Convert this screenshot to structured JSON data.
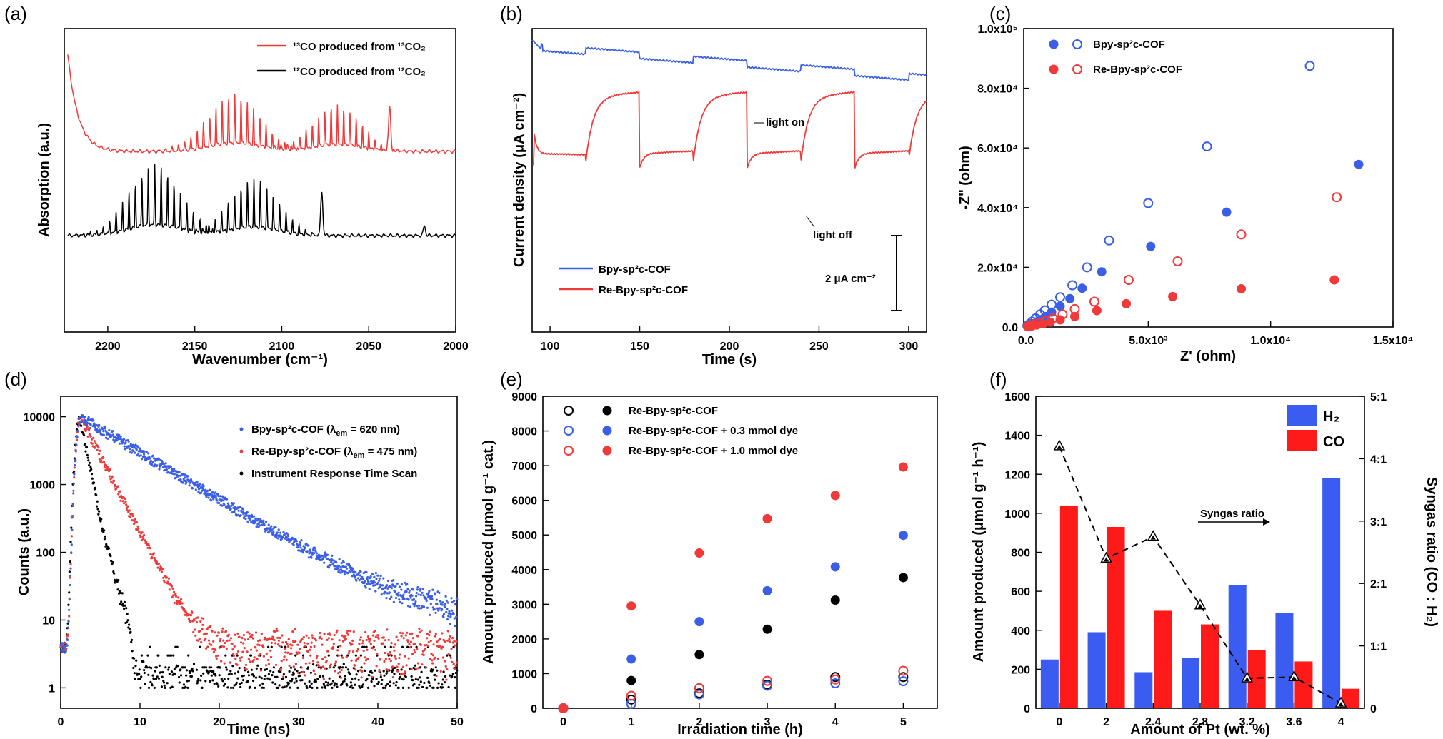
{
  "colors": {
    "blue": "#3a5fe6",
    "red": "#f03a3a",
    "black": "#000000",
    "bar_blue": "#3b5cf0",
    "bar_red": "#ff1a1a"
  },
  "chart_data": [
    {
      "panel": "(a)",
      "type": "line",
      "xlabel": "Wavenumber (cm⁻¹)",
      "ylabel": "Absorption (a.u.)",
      "xlim": [
        2225,
        2000
      ],
      "xticks": [
        2200,
        2150,
        2100,
        2050,
        2000
      ],
      "series": [
        {
          "name": "¹³CO produced from ¹³CO₂",
          "color": "#f03a3a"
        },
        {
          "name": "¹²CO produced from ¹²CO₂",
          "color": "#000000"
        }
      ]
    },
    {
      "panel": "(b)",
      "type": "line",
      "xlabel": "Time (s)",
      "ylabel": "Current density (μA cm⁻²)",
      "xlim": [
        90,
        310
      ],
      "xticks": [
        100,
        150,
        200,
        250,
        300
      ],
      "annotations": {
        "light_on": "light on",
        "light_off": "light off",
        "scale": "2 μA cm⁻²"
      },
      "series": [
        {
          "name": "Bpy-sp²c-COF",
          "color": "#3a5fe6"
        },
        {
          "name": "Re-Bpy-sp²c-COF",
          "color": "#f03a3a"
        }
      ]
    },
    {
      "panel": "(c)",
      "type": "scatter",
      "xlabel": "Z' (ohm)",
      "ylabel": "-Z'' (ohm)",
      "xlim": [
        0,
        15000
      ],
      "ylim": [
        0,
        100000
      ],
      "xticks": [
        "0.0",
        "5.0x10³",
        "1.0x10⁴",
        "1.5x10⁴"
      ],
      "yticks": [
        "0.0",
        "2.0x10⁴",
        "4.0x10⁴",
        "6.0x10⁴",
        "8.0x10⁴",
        "1.0x10⁵"
      ],
      "series": [
        {
          "name": "Bpy-sp²c-COF",
          "color": "#3a5fe6",
          "filled": true,
          "x": [
            80,
            180,
            300,
            450,
            620,
            800,
            1050,
            1400,
            1800,
            2300,
            3100,
            5100,
            8200,
            13600
          ],
          "y": [
            250,
            600,
            1100,
            1700,
            2500,
            3500,
            5000,
            7000,
            9500,
            13000,
            18500,
            27000,
            38500,
            54500
          ]
        },
        {
          "name": "Bpy-sp²c-COF",
          "color": "#3a5fe6",
          "filled": false,
          "x": [
            60,
            150,
            260,
            400,
            580,
            780,
            1050,
            1400,
            1900,
            2500,
            3400,
            5000,
            7400,
            11600
          ],
          "y": [
            400,
            1000,
            1800,
            2900,
            4200,
            5600,
            7500,
            10000,
            14000,
            20000,
            29000,
            41500,
            60500,
            87500
          ]
        },
        {
          "name": "Re-Bpy-sp²c-COF",
          "color": "#f03a3a",
          "filled": true,
          "x": [
            100,
            250,
            450,
            700,
            1000,
            1400,
            2000,
            2900,
            4100,
            6000,
            8800,
            12600
          ],
          "y": [
            150,
            350,
            700,
            1100,
            1600,
            2400,
            3500,
            5500,
            7800,
            10200,
            12800,
            15800
          ]
        },
        {
          "name": "Re-Bpy-sp²c-COF",
          "color": "#f03a3a",
          "filled": false,
          "x": [
            80,
            200,
            350,
            550,
            800,
            1100,
            1500,
            2000,
            2800,
            4200,
            6200,
            8800,
            12700
          ],
          "y": [
            200,
            500,
            900,
            1400,
            2000,
            2900,
            4200,
            6000,
            8500,
            15800,
            22000,
            31000,
            43500
          ]
        }
      ]
    },
    {
      "panel": "(d)",
      "type": "scatter",
      "yscale": "log",
      "xlabel": "Time (ns)",
      "ylabel": "Counts (a.u.)",
      "xlim": [
        0,
        50
      ],
      "ylim": [
        0.5,
        20000
      ],
      "xticks": [
        "0",
        "10",
        "20",
        "30",
        "40",
        "50"
      ],
      "yticks": [
        "1",
        "10",
        "100",
        "1000",
        "10000"
      ],
      "series": [
        {
          "name": "Bpy-sp²c-COF (λ",
          "name_sub": "em",
          "name_tail": " = 620 nm)",
          "color": "#3a5fe6",
          "peak_time": 2.5,
          "tau": 6.2,
          "floor": 14
        },
        {
          "name": "Re-Bpy-sp²c-COF (λ",
          "name_sub": "em",
          "name_tail": " = 475 nm)",
          "color": "#f03a3a",
          "peak_time": 2.5,
          "tau": 1.9,
          "floor": 5
        },
        {
          "name": "Instrument Response Time Scan",
          "color": "#000000",
          "peak_time": 2.4,
          "tau": 0.75,
          "floor": 1.5
        }
      ]
    },
    {
      "panel": "(e)",
      "type": "scatter",
      "xlabel": "Irradiation time (h)",
      "ylabel": "Amount produced (μmol g⁻¹ cat.)",
      "xlim": [
        -0.3,
        5.5
      ],
      "ylim": [
        0,
        9000
      ],
      "x": [
        0,
        1,
        2,
        3,
        4,
        5
      ],
      "yticks": [
        0,
        1000,
        2000,
        3000,
        4000,
        5000,
        6000,
        7000,
        8000,
        9000
      ],
      "series": [
        {
          "name": "Re-Bpy-sp²c-COF",
          "color": "#000000",
          "filled_values": [
            0,
            800,
            1550,
            2280,
            3120,
            3770
          ],
          "open_values": [
            0,
            250,
            430,
            680,
            900,
            900
          ]
        },
        {
          "name": "Re-Bpy-sp²c-COF + 0.3 mmol dye",
          "color": "#3a5fe6",
          "filled_values": [
            0,
            1420,
            2500,
            3390,
            4080,
            4990
          ],
          "open_values": [
            0,
            130,
            400,
            650,
            720,
            780
          ]
        },
        {
          "name": "Re-Bpy-sp²c-COF + 1.0 mmol dye",
          "color": "#f03a3a",
          "filled_values": [
            0,
            2950,
            4480,
            5470,
            6140,
            6960
          ],
          "open_values": [
            0,
            360,
            580,
            790,
            830,
            1080
          ]
        }
      ]
    },
    {
      "panel": "(f)",
      "type": "bar",
      "xlabel": "Amount of Pt (wt. %)",
      "ylabel": "Amount produced (μmol g⁻¹ h⁻¹)",
      "y2label": "Syngas ratio (CO : H₂)",
      "categories": [
        "0",
        "2",
        "2.4",
        "2.8",
        "3.2",
        "3.6",
        "4"
      ],
      "ylim": [
        0,
        1600
      ],
      "yticks": [
        0,
        200,
        400,
        600,
        800,
        1000,
        1200,
        1400,
        1600
      ],
      "y2ticks": [
        "0",
        "1:1",
        "2:1",
        "3:1",
        "4:1",
        "5:1"
      ],
      "y2lim": [
        0,
        5
      ],
      "series": [
        {
          "name": "H₂",
          "color": "#3b5cf0",
          "values": [
            250,
            390,
            185,
            260,
            630,
            490,
            1180
          ]
        },
        {
          "name": "CO",
          "color": "#ff1a1a",
          "values": [
            1040,
            930,
            500,
            430,
            300,
            240,
            100
          ]
        }
      ],
      "ratio": {
        "name": "Syngas ratio",
        "values": [
          4.2,
          2.4,
          2.75,
          1.65,
          0.48,
          0.5,
          0.08
        ]
      }
    }
  ]
}
